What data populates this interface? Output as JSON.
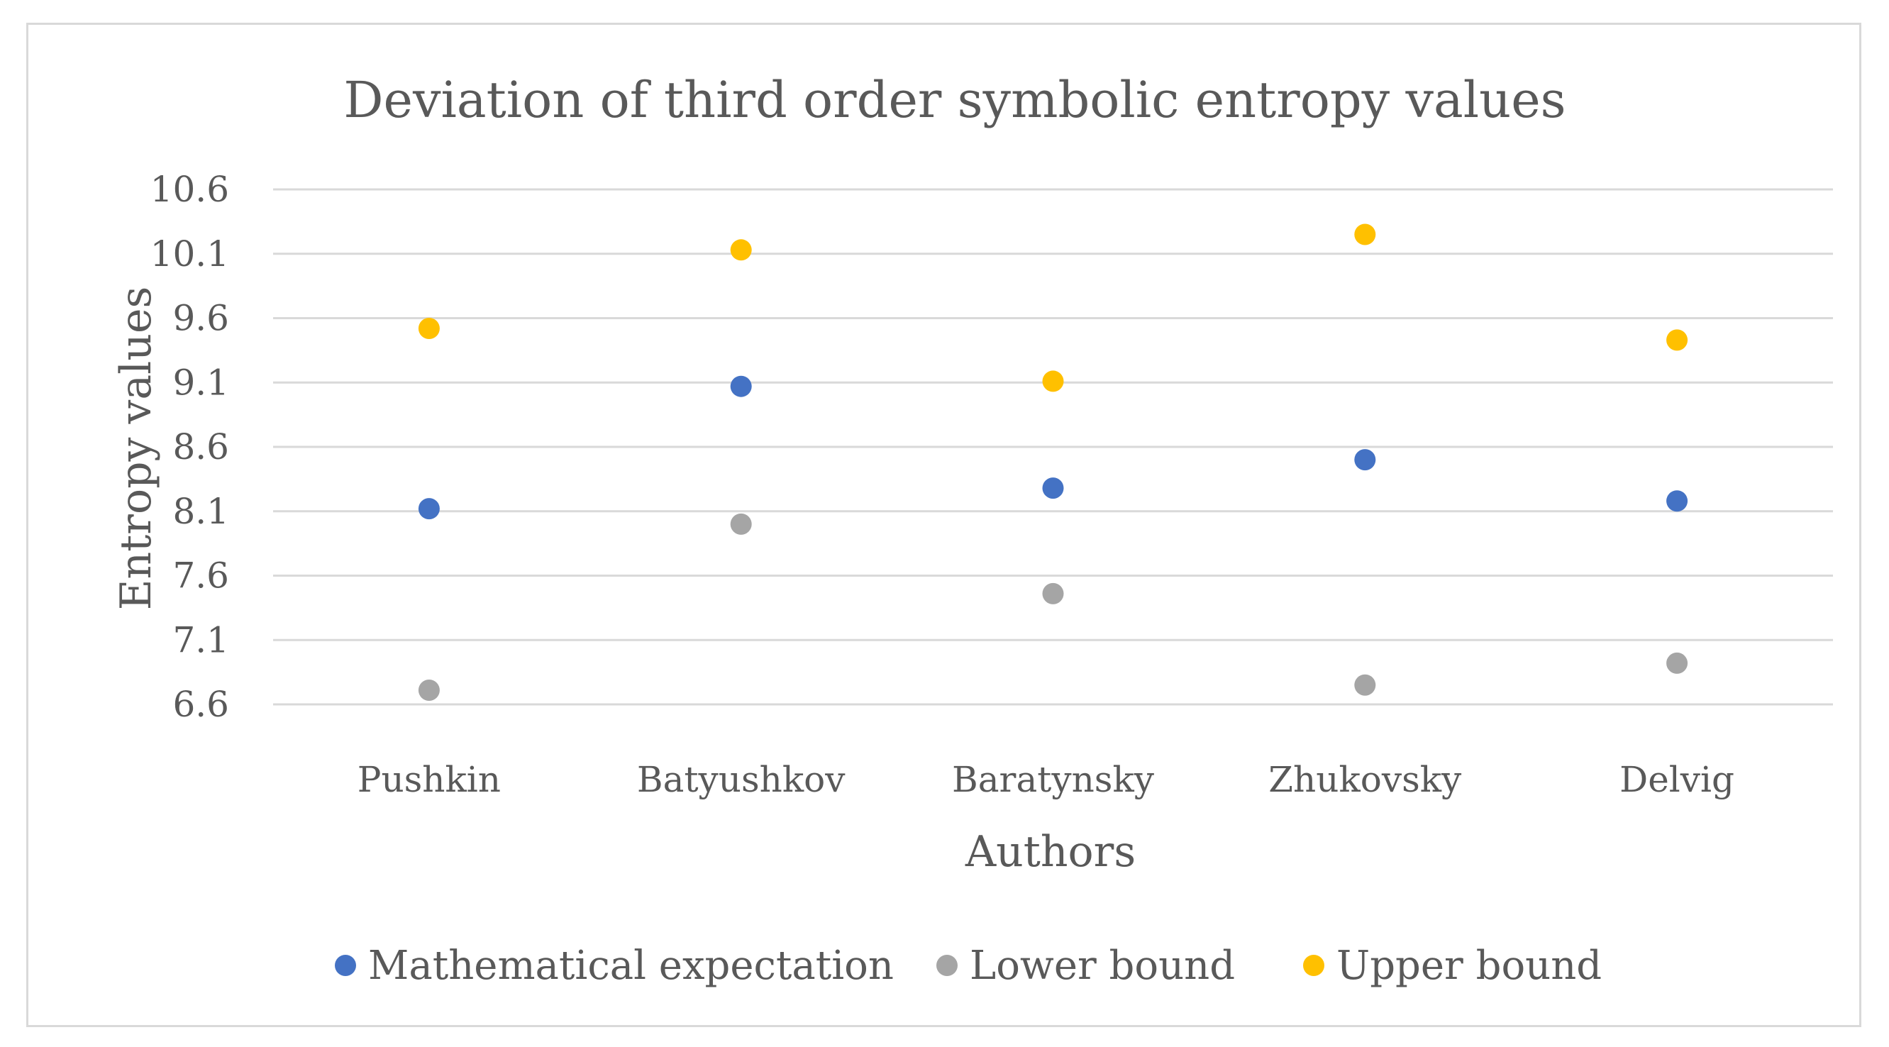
{
  "chart_data": {
    "type": "scatter",
    "title": "Deviation of third order symbolic entropy values",
    "xlabel": "Authors",
    "ylabel": "Entropy values",
    "categories": [
      "Pushkin",
      "Batyushkov",
      "Baratynsky",
      "Zhukovsky",
      "Delvig"
    ],
    "ylim": [
      6.6,
      10.6
    ],
    "yticks": [
      "10.6",
      "10.1",
      "9.6",
      "9.1",
      "8.6",
      "8.1",
      "7.6",
      "7.1",
      "6.6"
    ],
    "grid": true,
    "legend_position": "bottom",
    "series": [
      {
        "name": "Mathematical expectation",
        "color": "#4472c4",
        "values": [
          8.12,
          9.07,
          8.28,
          8.5,
          8.18
        ]
      },
      {
        "name": "Lower bound",
        "color": "#a5a5a5",
        "values": [
          6.71,
          8.0,
          7.46,
          6.75,
          6.92
        ]
      },
      {
        "name": "Upper bound",
        "color": "#ffc000",
        "values": [
          9.52,
          10.13,
          9.11,
          10.25,
          9.43
        ]
      }
    ]
  }
}
